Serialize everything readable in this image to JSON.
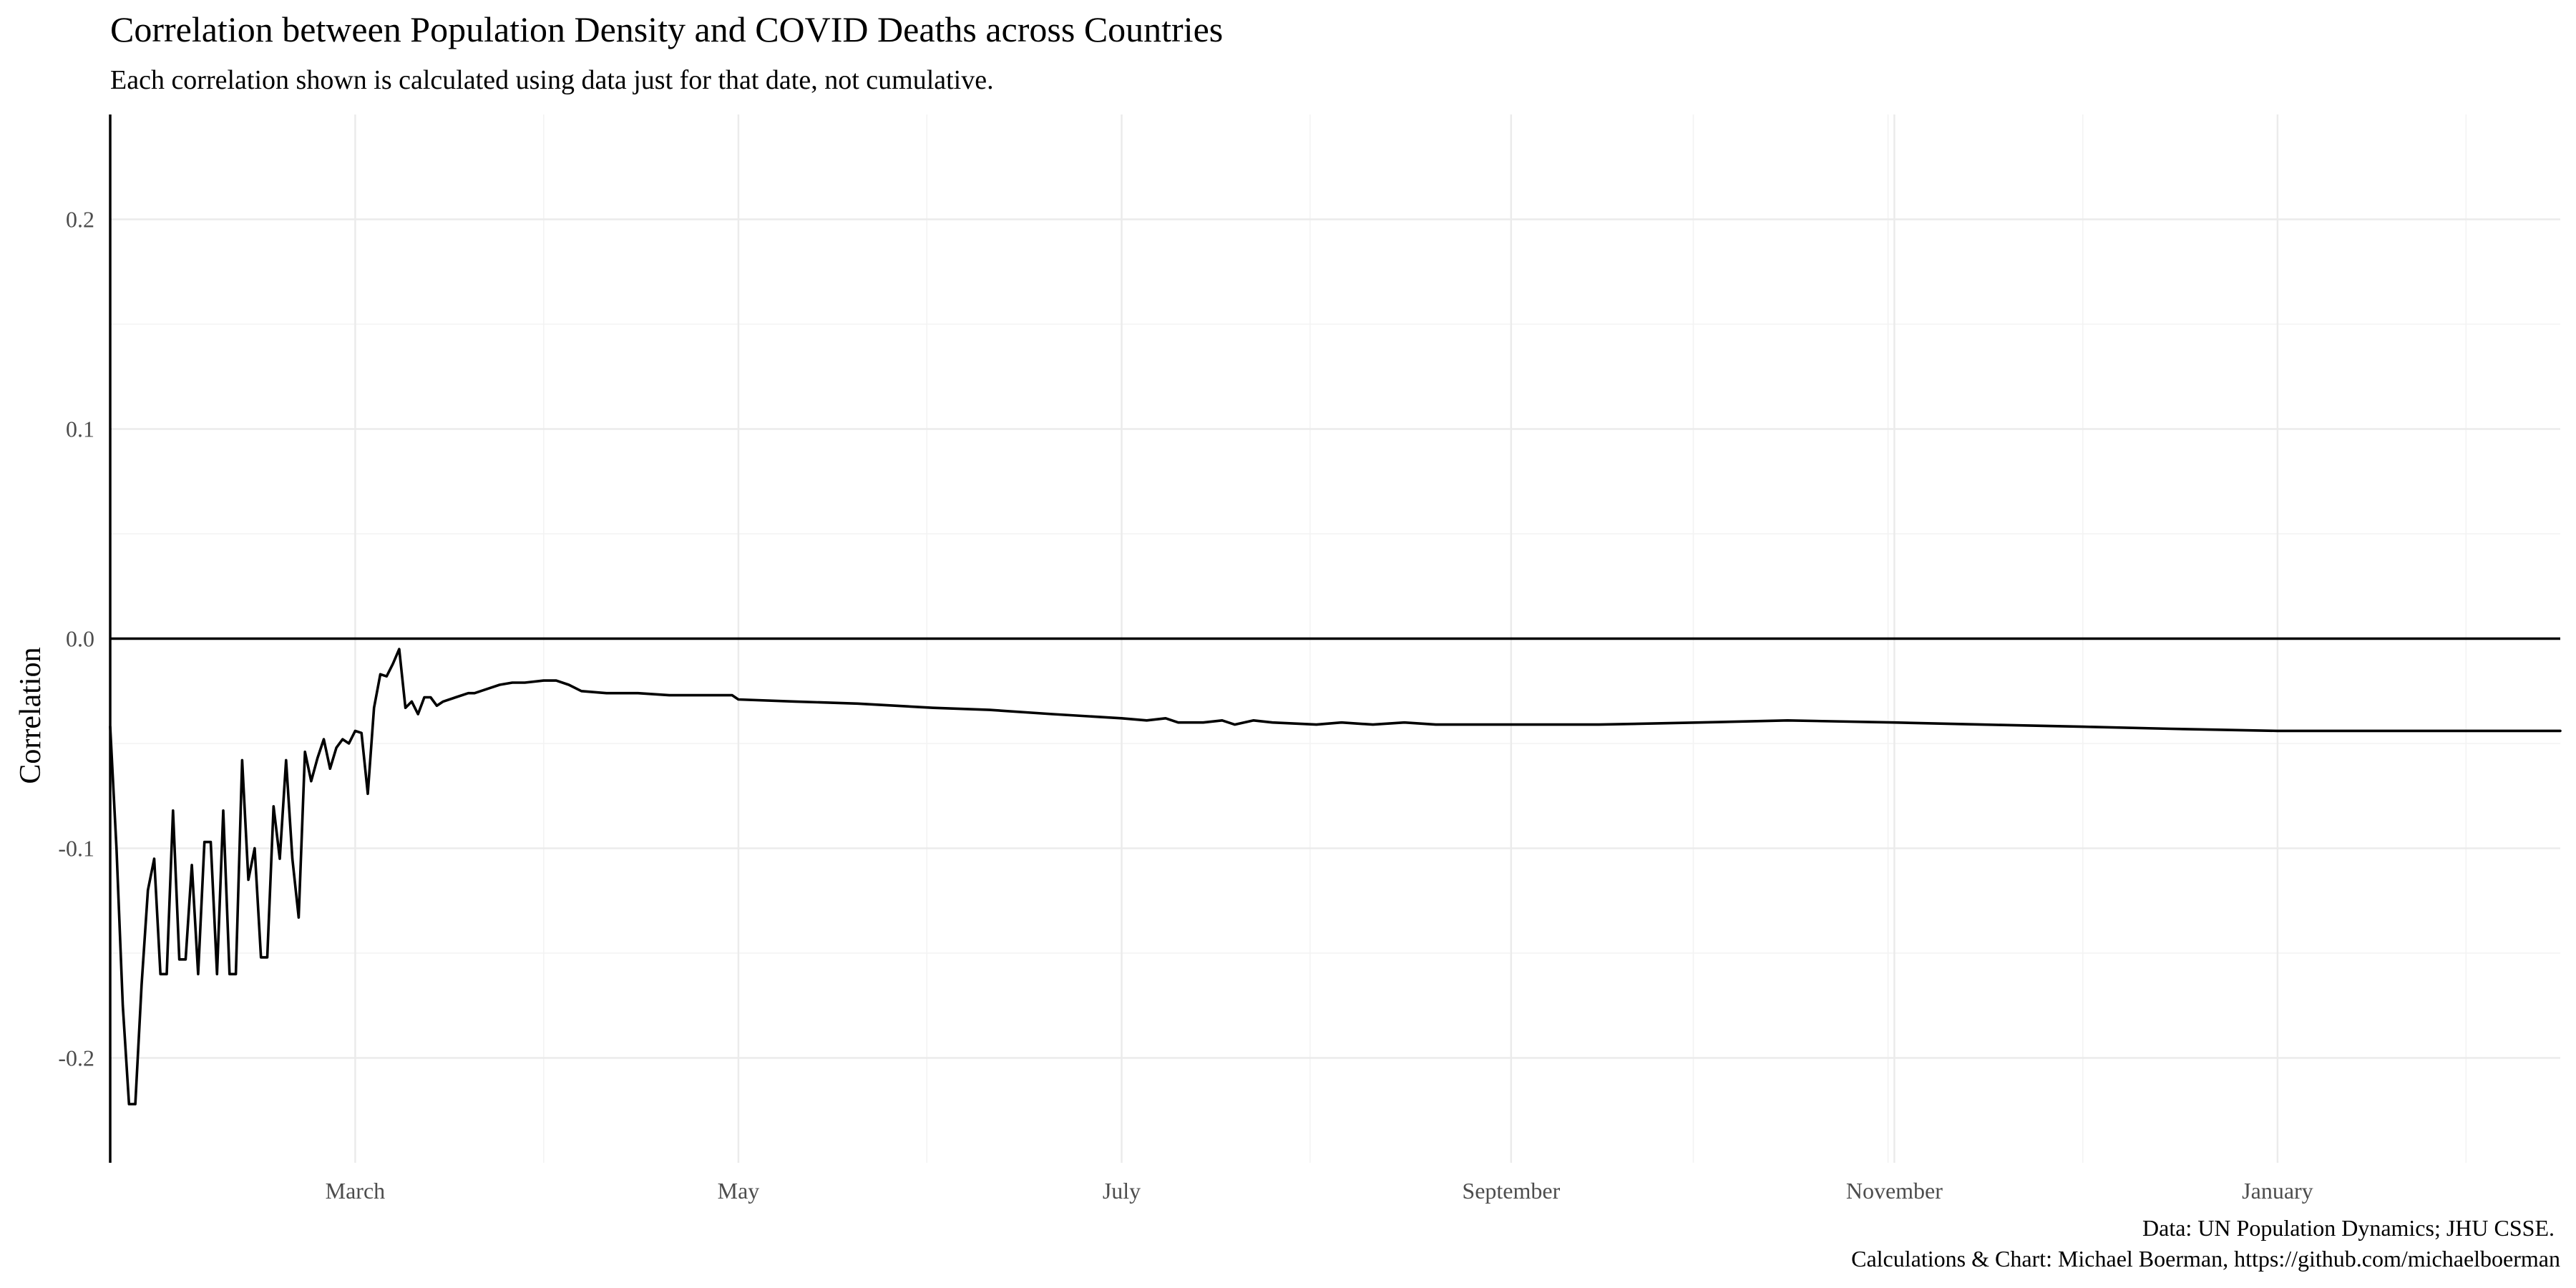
{
  "chart_data": {
    "type": "line",
    "title": "Correlation between Population Density and COVID Deaths across Countries",
    "subtitle": "Each correlation shown is calculated using data just for that date, not cumulative.",
    "xlabel": "",
    "ylabel": "Correlation",
    "x_type": "date",
    "xlim": [
      "2020-01-22",
      "2021-02-15"
    ],
    "ylim": [
      -0.25,
      0.25
    ],
    "x_ticks": [
      {
        "date": "2020-03-01",
        "label": "March"
      },
      {
        "date": "2020-05-01",
        "label": "May"
      },
      {
        "date": "2020-07-01",
        "label": "July"
      },
      {
        "date": "2020-09-01",
        "label": "September"
      },
      {
        "date": "2020-11-01",
        "label": "November"
      },
      {
        "date": "2021-01-01",
        "label": "January"
      }
    ],
    "x_minor_ticks": [
      "2020-03-31",
      "2020-05-31",
      "2020-07-31",
      "2020-09-30",
      "2020-10-31",
      "2020-12-01",
      "2021-01-31"
    ],
    "y_ticks": [
      {
        "value": -0.2,
        "label": "-0.2"
      },
      {
        "value": -0.1,
        "label": "-0.1"
      },
      {
        "value": 0.0,
        "label": "0.0"
      },
      {
        "value": 0.1,
        "label": "0.1"
      },
      {
        "value": 0.2,
        "label": "0.2"
      }
    ],
    "y_minor_ticks": [
      -0.15,
      -0.05,
      0.05,
      0.15
    ],
    "grid": true,
    "reference_line": 0,
    "caption": [
      "Data: UN Population Dynamics; JHU CSSE.",
      "Calculations & Chart: Michael Boerman, https://github.com/michaelboerman"
    ],
    "series": [
      {
        "color": "#000000",
        "points": [
          [
            "2020-01-22",
            -0.042
          ],
          [
            "2020-01-23",
            -0.1
          ],
          [
            "2020-01-24",
            -0.175
          ],
          [
            "2020-01-25",
            -0.222
          ],
          [
            "2020-01-26",
            -0.222
          ],
          [
            "2020-01-27",
            -0.165
          ],
          [
            "2020-01-28",
            -0.12
          ],
          [
            "2020-01-29",
            -0.105
          ],
          [
            "2020-01-30",
            -0.16
          ],
          [
            "2020-01-31",
            -0.16
          ],
          [
            "2020-02-01",
            -0.082
          ],
          [
            "2020-02-02",
            -0.153
          ],
          [
            "2020-02-03",
            -0.153
          ],
          [
            "2020-02-04",
            -0.108
          ],
          [
            "2020-02-05",
            -0.16
          ],
          [
            "2020-02-06",
            -0.097
          ],
          [
            "2020-02-07",
            -0.097
          ],
          [
            "2020-02-08",
            -0.16
          ],
          [
            "2020-02-09",
            -0.082
          ],
          [
            "2020-02-10",
            -0.16
          ],
          [
            "2020-02-11",
            -0.16
          ],
          [
            "2020-02-12",
            -0.058
          ],
          [
            "2020-02-13",
            -0.115
          ],
          [
            "2020-02-14",
            -0.1
          ],
          [
            "2020-02-15",
            -0.152
          ],
          [
            "2020-02-16",
            -0.152
          ],
          [
            "2020-02-17",
            -0.08
          ],
          [
            "2020-02-18",
            -0.105
          ],
          [
            "2020-02-19",
            -0.058
          ],
          [
            "2020-02-20",
            -0.105
          ],
          [
            "2020-02-21",
            -0.133
          ],
          [
            "2020-02-22",
            -0.054
          ],
          [
            "2020-02-23",
            -0.068
          ],
          [
            "2020-02-24",
            -0.057
          ],
          [
            "2020-02-25",
            -0.048
          ],
          [
            "2020-02-26",
            -0.062
          ],
          [
            "2020-02-27",
            -0.052
          ],
          [
            "2020-02-28",
            -0.048
          ],
          [
            "2020-02-29",
            -0.05
          ],
          [
            "2020-03-01",
            -0.044
          ],
          [
            "2020-03-02",
            -0.045
          ],
          [
            "2020-03-03",
            -0.074
          ],
          [
            "2020-03-04",
            -0.033
          ],
          [
            "2020-03-05",
            -0.017
          ],
          [
            "2020-03-06",
            -0.018
          ],
          [
            "2020-03-07",
            -0.012
          ],
          [
            "2020-03-08",
            -0.005
          ],
          [
            "2020-03-09",
            -0.033
          ],
          [
            "2020-03-10",
            -0.03
          ],
          [
            "2020-03-11",
            -0.036
          ],
          [
            "2020-03-12",
            -0.028
          ],
          [
            "2020-03-13",
            -0.028
          ],
          [
            "2020-03-14",
            -0.032
          ],
          [
            "2020-03-15",
            -0.03
          ],
          [
            "2020-03-17",
            -0.028
          ],
          [
            "2020-03-19",
            -0.026
          ],
          [
            "2020-03-20",
            -0.026
          ],
          [
            "2020-03-22",
            -0.024
          ],
          [
            "2020-03-24",
            -0.022
          ],
          [
            "2020-03-26",
            -0.021
          ],
          [
            "2020-03-28",
            -0.021
          ],
          [
            "2020-03-31",
            -0.02
          ],
          [
            "2020-04-02",
            -0.02
          ],
          [
            "2020-04-04",
            -0.022
          ],
          [
            "2020-04-06",
            -0.025
          ],
          [
            "2020-04-10",
            -0.026
          ],
          [
            "2020-04-15",
            -0.026
          ],
          [
            "2020-04-20",
            -0.027
          ],
          [
            "2020-04-25",
            -0.027
          ],
          [
            "2020-04-30",
            -0.027
          ],
          [
            "2020-05-01",
            -0.029
          ],
          [
            "2020-05-10",
            -0.03
          ],
          [
            "2020-05-20",
            -0.031
          ],
          [
            "2020-06-01",
            -0.033
          ],
          [
            "2020-06-10",
            -0.034
          ],
          [
            "2020-06-20",
            -0.036
          ],
          [
            "2020-07-01",
            -0.038
          ],
          [
            "2020-07-05",
            -0.039
          ],
          [
            "2020-07-08",
            -0.038
          ],
          [
            "2020-07-10",
            -0.04
          ],
          [
            "2020-07-14",
            -0.04
          ],
          [
            "2020-07-17",
            -0.039
          ],
          [
            "2020-07-19",
            -0.041
          ],
          [
            "2020-07-22",
            -0.039
          ],
          [
            "2020-07-25",
            -0.04
          ],
          [
            "2020-08-01",
            -0.041
          ],
          [
            "2020-08-05",
            -0.04
          ],
          [
            "2020-08-10",
            -0.041
          ],
          [
            "2020-08-15",
            -0.04
          ],
          [
            "2020-08-20",
            -0.041
          ],
          [
            "2020-09-01",
            -0.041
          ],
          [
            "2020-09-15",
            -0.041
          ],
          [
            "2020-10-01",
            -0.04
          ],
          [
            "2020-10-15",
            -0.039
          ],
          [
            "2020-11-01",
            -0.04
          ],
          [
            "2020-11-15",
            -0.041
          ],
          [
            "2020-12-01",
            -0.042
          ],
          [
            "2020-12-15",
            -0.043
          ],
          [
            "2021-01-01",
            -0.044
          ],
          [
            "2021-01-15",
            -0.044
          ],
          [
            "2021-02-01",
            -0.044
          ],
          [
            "2021-02-15",
            -0.044
          ]
        ]
      }
    ]
  }
}
